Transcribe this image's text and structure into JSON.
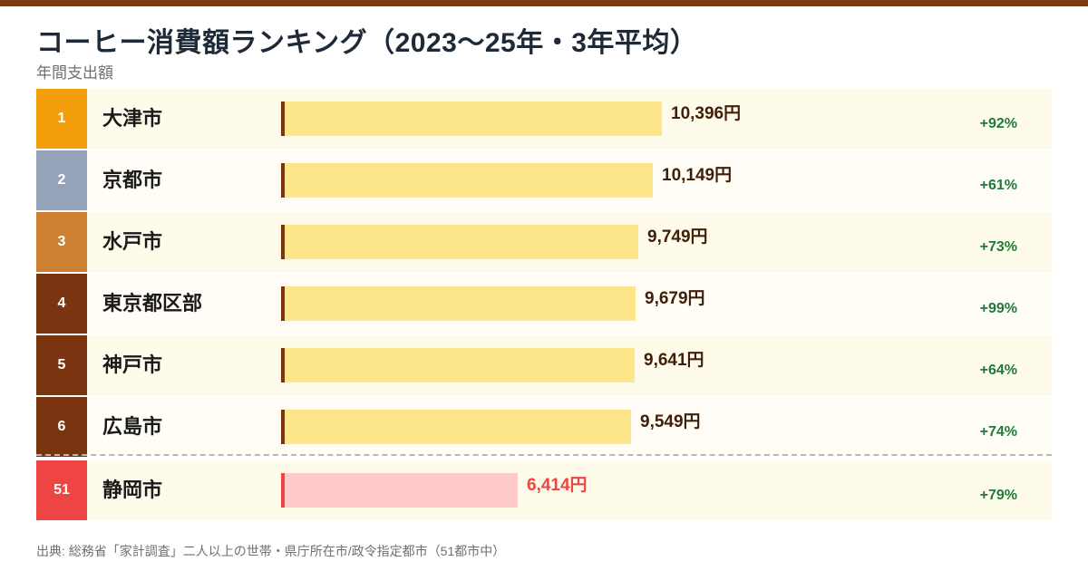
{
  "title": "コーヒー消費額ランキング（2023〜25年・3年平均）",
  "subtitle": "年間支出額",
  "source": "出典: 総務省「家計調査」二人以上の世帯・県庁所在市/政令指定都市（51都市中）",
  "colors": {
    "top_stripe": "#7a3d12",
    "rank_gold": "#f59e0b",
    "rank_silver": "#94a3b8",
    "rank_bronze": "#cd7f32",
    "rank_other": "#7a3410",
    "rank_highlight": "#ef4444",
    "bar_fill": "#fde68a",
    "bar_accent": "#7a3410",
    "bar_fill_highlight": "#fecaca",
    "bar_accent_highlight": "#ef4444",
    "value_text": "#3f1f08",
    "value_text_highlight": "#ef4444",
    "change_text": "#1f7a3a",
    "row_bg_a": "#fffbea",
    "row_bg_b": "#fffdf5"
  },
  "chart_data": {
    "type": "bar",
    "orientation": "horizontal",
    "title": "コーヒー消費額ランキング（2023〜25年・3年平均）",
    "subtitle": "年間支出額",
    "unit": "円",
    "xlim": [
      0,
      17500
    ],
    "grid": false,
    "rows": [
      {
        "rank": "1",
        "city": "大津市",
        "value": 10396,
        "label": "10,396円",
        "change": "+92%",
        "rank_color": "#f59e0b",
        "highlight": false
      },
      {
        "rank": "2",
        "city": "京都市",
        "value": 10149,
        "label": "10,149円",
        "change": "+61%",
        "rank_color": "#94a3b8",
        "highlight": false
      },
      {
        "rank": "3",
        "city": "水戸市",
        "value": 9749,
        "label": "9,749円",
        "change": "+73%",
        "rank_color": "#cd7f32",
        "highlight": false
      },
      {
        "rank": "4",
        "city": "東京都区部",
        "value": 9679,
        "label": "9,679円",
        "change": "+99%",
        "rank_color": "#7a3410",
        "highlight": false
      },
      {
        "rank": "5",
        "city": "神戸市",
        "value": 9641,
        "label": "9,641円",
        "change": "+64%",
        "rank_color": "#7a3410",
        "highlight": false
      },
      {
        "rank": "6",
        "city": "広島市",
        "value": 9549,
        "label": "9,549円",
        "change": "+74%",
        "rank_color": "#7a3410",
        "highlight": false
      },
      {
        "rank": "51",
        "city": "静岡市",
        "value": 6414,
        "label": "6,414円",
        "change": "+79%",
        "rank_color": "#ef4444",
        "highlight": true
      }
    ]
  }
}
